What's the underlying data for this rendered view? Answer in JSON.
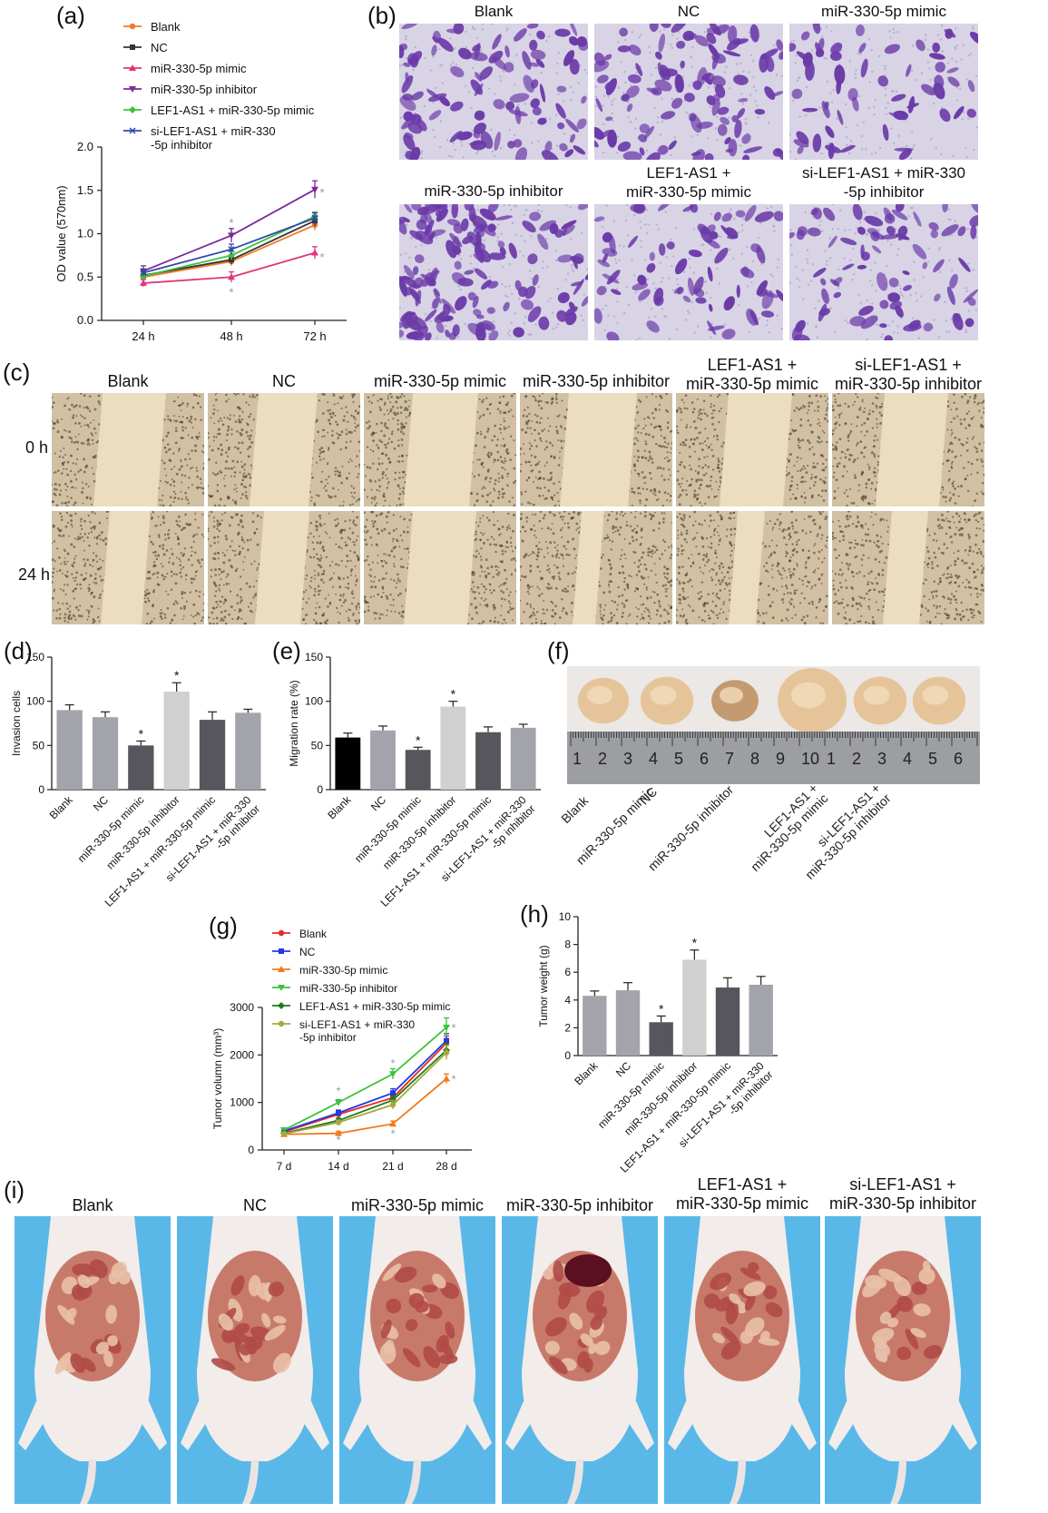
{
  "panel_labels": {
    "a": "(a)",
    "b": "(b)",
    "c": "(c)",
    "d": "(d)",
    "e": "(e)",
    "f": "(f)",
    "g": "(g)",
    "h": "(h)",
    "i": "(i)"
  },
  "colors": {
    "blank_a": "#f07a2a",
    "nc_a": "#333333",
    "mimic_a": "#e0357a",
    "inhibitor_a": "#7b2a9a",
    "lef_a": "#3cc23c",
    "si_a": "#3248a8",
    "blank_g": "#e8281e",
    "nc_g": "#2438e8",
    "mimic_g": "#f07a1e",
    "inhibitor_g": "#3cc23c",
    "lef_g": "#1e7a1e",
    "si_g": "#a8a83c",
    "star": "#999999",
    "crystal_violet": "#6a3aa8",
    "wound_bg": "#d8c6a8",
    "mouse_bg": "#55b6e6"
  },
  "panel_b": {
    "labels": [
      "Blank",
      "NC",
      "miR-330-5p mimic",
      "miR-330-5p inhibitor",
      "LEF1-AS1 +\nmiR-330-5p mimic",
      "si-LEF1-AS1 + miR-330\n-5p inhibitor"
    ],
    "density": [
      0.55,
      0.6,
      0.25,
      0.95,
      0.35,
      0.4
    ]
  },
  "panel_c": {
    "labels": [
      "Blank",
      "NC",
      "miR-330-5p mimic",
      "miR-330-5p inhibitor",
      "LEF1-AS1 +\nmiR-330-5p mimic",
      "si-LEF1-AS1 +\nmiR-330-5p inhibitor"
    ],
    "rows": [
      "0 h",
      "24 h"
    ]
  },
  "panel_f": {
    "tick_labels": [
      "1",
      "2",
      "3",
      "4",
      "5",
      "6",
      "7",
      "8",
      "9",
      "10",
      "1",
      "2",
      "3",
      "4",
      "5",
      "6"
    ],
    "group_labels": [
      "Blank",
      "NC",
      "miR-330-5p mimic",
      "miR-330-5p inhibitor",
      "LEF1-AS1 +\nmiR-330-5p mimic",
      "si-LEF1-AS1 +\nmiR-330-5p inhibitor"
    ],
    "tumor_size": [
      0.55,
      0.6,
      0.45,
      1.0,
      0.6,
      0.6
    ]
  },
  "panel_i": {
    "labels": [
      "Blank",
      "NC",
      "miR-330-5p mimic",
      "miR-330-5p inhibitor",
      "LEF1-AS1 +\nmiR-330-5p mimic",
      "si-LEF1-AS1 +\nmiR-330-5p inhibitor"
    ]
  },
  "chart_data": [
    {
      "id": "a",
      "type": "line",
      "x": [
        "24 h",
        "48 h",
        "72 h"
      ],
      "ylabel": "OD value (570nm)",
      "xlabel": "",
      "ylim": [
        0,
        2.0
      ],
      "yticks": [
        "0.0",
        "0.5",
        "1.0",
        "1.5",
        "2.0"
      ],
      "series": [
        {
          "name": "Blank",
          "values": [
            0.5,
            0.68,
            1.1
          ],
          "err": [
            0.04,
            0.05,
            0.06
          ]
        },
        {
          "name": "NC",
          "values": [
            0.52,
            0.7,
            1.15
          ],
          "err": [
            0.04,
            0.05,
            0.06
          ]
        },
        {
          "name": "miR-330-5p mimic",
          "values": [
            0.43,
            0.5,
            0.78
          ],
          "err": [
            0.04,
            0.06,
            0.07
          ]
        },
        {
          "name": "miR-330-5p inhibitor",
          "values": [
            0.57,
            0.98,
            1.51
          ],
          "err": [
            0.06,
            0.08,
            0.1
          ]
        },
        {
          "name": "LEF1-AS1 + miR-330-5p mimic",
          "values": [
            0.51,
            0.75,
            1.2
          ],
          "err": [
            0.04,
            0.05,
            0.05
          ]
        },
        {
          "name": "si-LEF1-AS1 + miR-330\n-5p inhibitor",
          "values": [
            0.55,
            0.82,
            1.18
          ],
          "err": [
            0.04,
            0.06,
            0.06
          ]
        }
      ],
      "stars": [
        {
          "x": "48 h",
          "y": 1.12
        },
        {
          "x": "48 h",
          "y": 0.32
        },
        {
          "x": "72 h",
          "y": 1.47
        },
        {
          "x": "72 h",
          "y": 0.72
        }
      ]
    },
    {
      "id": "d",
      "type": "bar",
      "categories": [
        "Blank",
        "NC",
        "miR-330-5p mimic",
        "miR-330-5p inhibitor",
        "LEF1-AS1 + miR-330-5p mimic",
        "si-LEF1-AS1 + miR-330\n-5p inhibitor"
      ],
      "values": [
        90,
        82,
        50,
        111,
        79,
        87
      ],
      "err": [
        6,
        6,
        5,
        10,
        9,
        4
      ],
      "ylabel": "Invasion cells",
      "xlabel": "",
      "ylim": [
        0,
        150
      ],
      "yticks": [
        "0",
        "50",
        "100",
        "150"
      ],
      "star": [
        false,
        false,
        true,
        true,
        false,
        false
      ],
      "bar_colors": [
        "#a3a3ab",
        "#a3a3ab",
        "#56565c",
        "#d0d0d0",
        "#56565c",
        "#a3a3ab"
      ]
    },
    {
      "id": "e",
      "type": "bar",
      "categories": [
        "Blank",
        "NC",
        "miR-330-5p mimic",
        "miR-330-5p inhibitor",
        "LEF1-AS1 + miR-330-5p mimic",
        "si-LEF1-AS1 + miR-330\n-5p inhibitor"
      ],
      "values": [
        59,
        67,
        45,
        94,
        65,
        70
      ],
      "err": [
        5,
        5,
        3,
        6,
        6,
        4
      ],
      "ylabel": "Migration rate (%)",
      "xlabel": "",
      "ylim": [
        0,
        150
      ],
      "yticks": [
        "0",
        "50",
        "100",
        "150"
      ],
      "star": [
        false,
        false,
        true,
        true,
        false,
        false
      ],
      "bar_colors": [
        "#000000",
        "#a3a3ab",
        "#56565c",
        "#d0d0d0",
        "#56565c",
        "#a3a3ab"
      ]
    },
    {
      "id": "g",
      "type": "line",
      "x": [
        "7 d",
        "14 d",
        "21 d",
        "28 d"
      ],
      "ylabel": "Tumor volumn (mm³)",
      "xlabel": "",
      "ylim": [
        0,
        3000
      ],
      "yticks": [
        "0",
        "1000",
        "2000",
        "3000"
      ],
      "series": [
        {
          "name": "Blank",
          "values": [
            380,
            750,
            1100,
            2250
          ],
          "err": [
            30,
            60,
            90,
            150
          ]
        },
        {
          "name": "NC",
          "values": [
            400,
            780,
            1200,
            2300
          ],
          "err": [
            30,
            60,
            90,
            150
          ]
        },
        {
          "name": "miR-330-5p mimic",
          "values": [
            330,
            350,
            550,
            1500
          ],
          "err": [
            30,
            40,
            60,
            100
          ]
        },
        {
          "name": "miR-330-5p inhibitor",
          "values": [
            420,
            1000,
            1600,
            2580
          ],
          "err": [
            30,
            60,
            110,
            200
          ]
        },
        {
          "name": "LEF1-AS1 + miR-330-5p mimic",
          "values": [
            350,
            620,
            1050,
            2100
          ],
          "err": [
            30,
            50,
            90,
            150
          ]
        },
        {
          "name": "si-LEF1-AS1 + miR-330\n-5p inhibitor",
          "values": [
            340,
            580,
            950,
            2050
          ],
          "err": [
            30,
            50,
            90,
            150
          ]
        }
      ],
      "stars": [
        {
          "x": "14 d",
          "y": 1230
        },
        {
          "x": "14 d",
          "y": 200
        },
        {
          "x": "21 d",
          "y": 1820
        },
        {
          "x": "21 d",
          "y": 330
        },
        {
          "x": "28 d",
          "y": 2560
        },
        {
          "x": "28 d",
          "y": 1480
        }
      ]
    },
    {
      "id": "h",
      "type": "bar",
      "categories": [
        "Blank",
        "NC",
        "miR-330-5p mimic",
        "miR-330-5p inhibitor",
        "LEF1-AS1 + miR-330-5p mimic",
        "si-LEF1-AS1 + miR-330\n-5p inhibitor"
      ],
      "values": [
        4.3,
        4.7,
        2.4,
        6.9,
        4.9,
        5.1
      ],
      "err": [
        0.35,
        0.55,
        0.45,
        0.7,
        0.7,
        0.6
      ],
      "ylabel": "Tumor weight (g)",
      "xlabel": "",
      "ylim": [
        0,
        10
      ],
      "yticks": [
        "0",
        "2",
        "4",
        "6",
        "8",
        "10"
      ],
      "star": [
        false,
        false,
        true,
        true,
        false,
        false
      ],
      "bar_colors": [
        "#a3a3ab",
        "#a3a3ab",
        "#56565c",
        "#d0d0d0",
        "#56565c",
        "#a3a3ab"
      ]
    }
  ]
}
